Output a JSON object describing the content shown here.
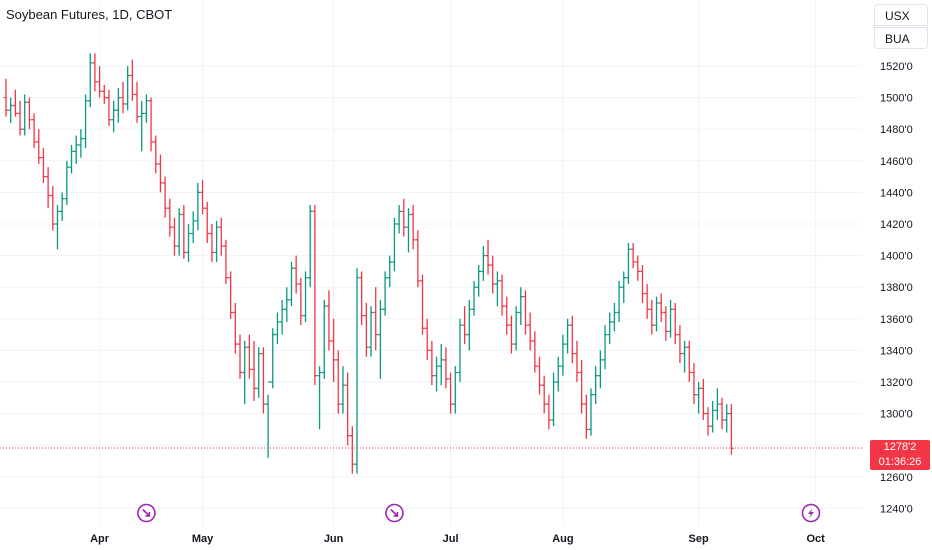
{
  "header": {
    "title": "Soybean Futures, 1D, CBOT"
  },
  "units": {
    "currency": "USX",
    "contract": "BUA"
  },
  "last_price": {
    "value": "1278'2",
    "countdown": "01:36:26"
  },
  "colors": {
    "up": "#089981",
    "down": "#f23645",
    "event": "#9c27b0",
    "grid": "#f0f3fa"
  },
  "chart_data": {
    "type": "ohlc",
    "y_range": [
      1230,
      1530
    ],
    "y_ticks": [
      {
        "value": 1240,
        "label": "1240'0"
      },
      {
        "value": 1260,
        "label": "1260'0"
      },
      {
        "value": 1280,
        "label": "1280'0"
      },
      {
        "value": 1300,
        "label": "1300'0"
      },
      {
        "value": 1320,
        "label": "1320'0"
      },
      {
        "value": 1340,
        "label": "1340'0"
      },
      {
        "value": 1360,
        "label": "1360'0"
      },
      {
        "value": 1380,
        "label": "1380'0"
      },
      {
        "value": 1400,
        "label": "1400'0"
      },
      {
        "value": 1420,
        "label": "1420'0"
      },
      {
        "value": 1440,
        "label": "1440'0"
      },
      {
        "value": 1460,
        "label": "1460'0"
      },
      {
        "value": 1480,
        "label": "1480'0"
      },
      {
        "value": 1500,
        "label": "1500'0"
      },
      {
        "value": 1520,
        "label": "1520'0"
      }
    ],
    "x_ticks": [
      {
        "label": "Apr",
        "index": 20
      },
      {
        "label": "May",
        "index": 42
      },
      {
        "label": "Jun",
        "index": 70
      },
      {
        "label": "Jul",
        "index": 95
      },
      {
        "label": "Aug",
        "index": 119
      },
      {
        "label": "Sep",
        "index": 148
      },
      {
        "label": "Oct",
        "index": 173
      }
    ],
    "events": [
      {
        "index": 30,
        "icon": "dividend-arrow-icon"
      },
      {
        "index": 83,
        "icon": "dividend-arrow-icon"
      },
      {
        "index": 172,
        "icon": "lightning-icon"
      }
    ],
    "last_value": 1278.25,
    "bars": [
      [
        1500,
        1512,
        1488,
        1492
      ],
      [
        1492,
        1500,
        1484,
        1495
      ],
      [
        1495,
        1505,
        1488,
        1490
      ],
      [
        1490,
        1498,
        1476,
        1480
      ],
      [
        1480,
        1502,
        1476,
        1497
      ],
      [
        1497,
        1500,
        1480,
        1486
      ],
      [
        1486,
        1490,
        1468,
        1472
      ],
      [
        1472,
        1480,
        1458,
        1462
      ],
      [
        1462,
        1468,
        1446,
        1450
      ],
      [
        1450,
        1456,
        1430,
        1438
      ],
      [
        1438,
        1444,
        1416,
        1420
      ],
      [
        1420,
        1432,
        1404,
        1428
      ],
      [
        1428,
        1440,
        1422,
        1436
      ],
      [
        1436,
        1460,
        1432,
        1456
      ],
      [
        1456,
        1470,
        1452,
        1466
      ],
      [
        1466,
        1476,
        1458,
        1470
      ],
      [
        1470,
        1480,
        1462,
        1474
      ],
      [
        1474,
        1502,
        1468,
        1498
      ],
      [
        1498,
        1528,
        1494,
        1522
      ],
      [
        1522,
        1528,
        1504,
        1510
      ],
      [
        1510,
        1520,
        1500,
        1504
      ],
      [
        1504,
        1508,
        1496,
        1500
      ],
      [
        1500,
        1505,
        1482,
        1486
      ],
      [
        1486,
        1498,
        1478,
        1492
      ],
      [
        1492,
        1506,
        1484,
        1500
      ],
      [
        1500,
        1510,
        1490,
        1496
      ],
      [
        1496,
        1520,
        1492,
        1514
      ],
      [
        1514,
        1524,
        1498,
        1502
      ],
      [
        1502,
        1510,
        1484,
        1488
      ],
      [
        1488,
        1498,
        1466,
        1490
      ],
      [
        1490,
        1502,
        1484,
        1498
      ],
      [
        1498,
        1500,
        1466,
        1472
      ],
      [
        1472,
        1476,
        1452,
        1458
      ],
      [
        1458,
        1464,
        1440,
        1446
      ],
      [
        1446,
        1450,
        1424,
        1430
      ],
      [
        1430,
        1436,
        1412,
        1418
      ],
      [
        1418,
        1424,
        1400,
        1406
      ],
      [
        1406,
        1430,
        1400,
        1426
      ],
      [
        1426,
        1432,
        1398,
        1402
      ],
      [
        1402,
        1420,
        1396,
        1414
      ],
      [
        1414,
        1428,
        1408,
        1422
      ],
      [
        1422,
        1446,
        1416,
        1440
      ],
      [
        1440,
        1448,
        1426,
        1430
      ],
      [
        1430,
        1434,
        1408,
        1414
      ],
      [
        1414,
        1420,
        1396,
        1402
      ],
      [
        1402,
        1422,
        1396,
        1418
      ],
      [
        1418,
        1424,
        1400,
        1406
      ],
      [
        1406,
        1410,
        1382,
        1386
      ],
      [
        1386,
        1390,
        1360,
        1364
      ],
      [
        1364,
        1370,
        1338,
        1344
      ],
      [
        1344,
        1350,
        1322,
        1326
      ],
      [
        1326,
        1346,
        1306,
        1342
      ],
      [
        1342,
        1350,
        1322,
        1328
      ],
      [
        1328,
        1346,
        1308,
        1316
      ],
      [
        1316,
        1342,
        1310,
        1338
      ],
      [
        1338,
        1342,
        1300,
        1306
      ],
      [
        1306,
        1312,
        1272,
        1320
      ],
      [
        1320,
        1354,
        1316,
        1350
      ],
      [
        1350,
        1364,
        1344,
        1358
      ],
      [
        1358,
        1372,
        1350,
        1366
      ],
      [
        1366,
        1380,
        1358,
        1372
      ],
      [
        1372,
        1396,
        1368,
        1392
      ],
      [
        1392,
        1400,
        1376,
        1382
      ],
      [
        1382,
        1386,
        1356,
        1362
      ],
      [
        1362,
        1390,
        1358,
        1386
      ],
      [
        1386,
        1432,
        1380,
        1428
      ],
      [
        1428,
        1432,
        1318,
        1324
      ],
      [
        1324,
        1330,
        1290,
        1326
      ],
      [
        1326,
        1372,
        1322,
        1368
      ],
      [
        1368,
        1378,
        1340,
        1346
      ],
      [
        1346,
        1360,
        1320,
        1334
      ],
      [
        1334,
        1340,
        1300,
        1306
      ],
      [
        1306,
        1330,
        1300,
        1318
      ],
      [
        1318,
        1326,
        1280,
        1286
      ],
      [
        1286,
        1292,
        1262,
        1268
      ],
      [
        1268,
        1392,
        1262,
        1386
      ],
      [
        1386,
        1390,
        1356,
        1362
      ],
      [
        1362,
        1370,
        1336,
        1342
      ],
      [
        1342,
        1368,
        1336,
        1364
      ],
      [
        1364,
        1380,
        1340,
        1350
      ],
      [
        1350,
        1372,
        1322,
        1366
      ],
      [
        1366,
        1390,
        1362,
        1386
      ],
      [
        1386,
        1400,
        1380,
        1396
      ],
      [
        1396,
        1424,
        1390,
        1420
      ],
      [
        1420,
        1432,
        1414,
        1428
      ],
      [
        1428,
        1436,
        1412,
        1418
      ],
      [
        1418,
        1430,
        1402,
        1426
      ],
      [
        1426,
        1432,
        1404,
        1410
      ],
      [
        1410,
        1416,
        1380,
        1384
      ],
      [
        1384,
        1388,
        1350,
        1354
      ],
      [
        1354,
        1360,
        1334,
        1340
      ],
      [
        1340,
        1346,
        1318,
        1324
      ],
      [
        1324,
        1336,
        1314,
        1330
      ],
      [
        1330,
        1344,
        1318,
        1334
      ],
      [
        1334,
        1342,
        1316,
        1322
      ],
      [
        1322,
        1326,
        1300,
        1306
      ],
      [
        1306,
        1330,
        1300,
        1326
      ],
      [
        1326,
        1360,
        1320,
        1356
      ],
      [
        1356,
        1368,
        1344,
        1350
      ],
      [
        1350,
        1372,
        1340,
        1366
      ],
      [
        1366,
        1384,
        1362,
        1380
      ],
      [
        1380,
        1394,
        1374,
        1390
      ],
      [
        1390,
        1406,
        1384,
        1400
      ],
      [
        1400,
        1410,
        1388,
        1394
      ],
      [
        1394,
        1400,
        1376,
        1382
      ],
      [
        1382,
        1390,
        1368,
        1384
      ],
      [
        1384,
        1388,
        1362,
        1368
      ],
      [
        1368,
        1374,
        1350,
        1356
      ],
      [
        1356,
        1362,
        1338,
        1344
      ],
      [
        1344,
        1368,
        1340,
        1364
      ],
      [
        1364,
        1380,
        1356,
        1374
      ],
      [
        1374,
        1378,
        1350,
        1356
      ],
      [
        1356,
        1364,
        1340,
        1346
      ],
      [
        1346,
        1352,
        1326,
        1330
      ],
      [
        1330,
        1336,
        1312,
        1318
      ],
      [
        1318,
        1324,
        1300,
        1306
      ],
      [
        1306,
        1312,
        1290,
        1296
      ],
      [
        1296,
        1326,
        1292,
        1320
      ],
      [
        1320,
        1336,
        1314,
        1330
      ],
      [
        1330,
        1350,
        1324,
        1344
      ],
      [
        1344,
        1360,
        1338,
        1356
      ],
      [
        1356,
        1362,
        1332,
        1338
      ],
      [
        1338,
        1346,
        1320,
        1326
      ],
      [
        1326,
        1334,
        1300,
        1306
      ],
      [
        1306,
        1312,
        1284,
        1290
      ],
      [
        1290,
        1316,
        1286,
        1312
      ],
      [
        1312,
        1330,
        1306,
        1324
      ],
      [
        1324,
        1340,
        1316,
        1334
      ],
      [
        1334,
        1356,
        1328,
        1350
      ],
      [
        1350,
        1364,
        1344,
        1358
      ],
      [
        1358,
        1370,
        1352,
        1364
      ],
      [
        1364,
        1384,
        1358,
        1380
      ],
      [
        1380,
        1390,
        1370,
        1386
      ],
      [
        1386,
        1408,
        1382,
        1404
      ],
      [
        1404,
        1408,
        1392,
        1396
      ],
      [
        1396,
        1400,
        1384,
        1390
      ],
      [
        1390,
        1394,
        1370,
        1376
      ],
      [
        1376,
        1382,
        1360,
        1366
      ],
      [
        1366,
        1372,
        1350,
        1356
      ],
      [
        1356,
        1374,
        1352,
        1370
      ],
      [
        1370,
        1376,
        1358,
        1364
      ],
      [
        1364,
        1368,
        1346,
        1352
      ],
      [
        1352,
        1372,
        1348,
        1366
      ],
      [
        1366,
        1370,
        1344,
        1350
      ],
      [
        1350,
        1356,
        1332,
        1338
      ],
      [
        1338,
        1346,
        1326,
        1342
      ],
      [
        1342,
        1346,
        1320,
        1326
      ],
      [
        1326,
        1332,
        1306,
        1312
      ],
      [
        1312,
        1320,
        1300,
        1316
      ],
      [
        1316,
        1322,
        1296,
        1300
      ],
      [
        1300,
        1304,
        1286,
        1292
      ],
      [
        1292,
        1308,
        1288,
        1302
      ],
      [
        1302,
        1316,
        1296,
        1306
      ],
      [
        1306,
        1310,
        1290,
        1296
      ],
      [
        1296,
        1306,
        1288,
        1300
      ],
      [
        1300,
        1306,
        1274,
        1278
      ]
    ]
  }
}
